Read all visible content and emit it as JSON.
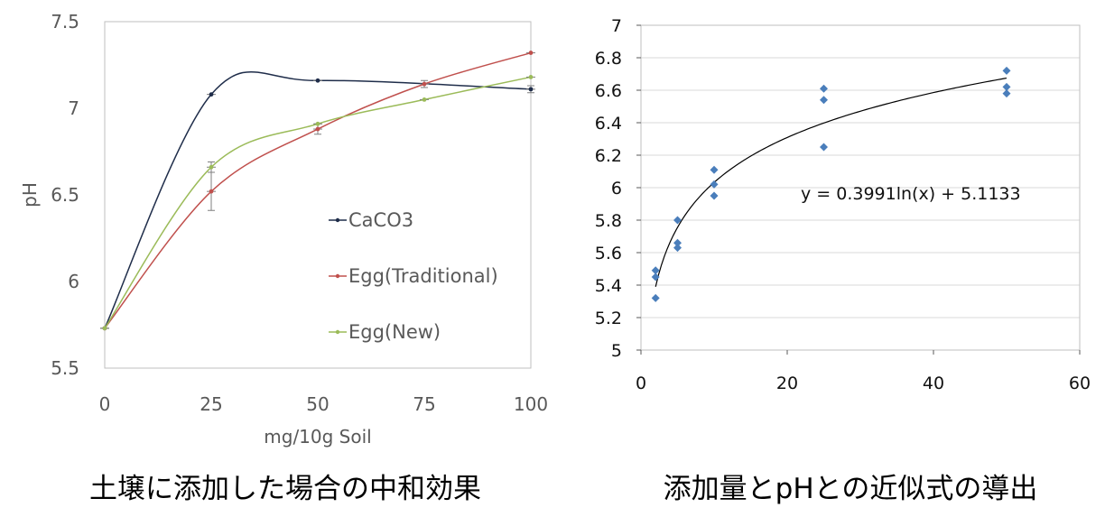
{
  "chart_data": [
    {
      "type": "line",
      "title": "",
      "xlabel": "mg/10g Soil",
      "ylabel": "pH",
      "xlim": [
        0,
        100
      ],
      "ylim": [
        5.5,
        7.5
      ],
      "x_ticks": [
        "0",
        "25",
        "50",
        "75",
        "100"
      ],
      "y_ticks": [
        "5.5",
        "6",
        "6.5",
        "7",
        "7.5"
      ],
      "legend_position": "inside-right",
      "series": [
        {
          "name": "CaCO3",
          "color": "#1f2d4a",
          "x": [
            0,
            25,
            50,
            100
          ],
          "y": [
            5.73,
            7.08,
            7.16,
            7.11
          ],
          "error": [
            0.0,
            0.0,
            0.0,
            0.02
          ]
        },
        {
          "name": "Egg(Traditional)",
          "color": "#c0504d",
          "x": [
            0,
            25,
            50,
            75,
            100
          ],
          "y": [
            5.73,
            6.52,
            6.88,
            7.14,
            7.32
          ],
          "error": [
            0.0,
            0.11,
            0.03,
            0.02,
            0.0
          ]
        },
        {
          "name": "Egg(New)",
          "color": "#9bbb59",
          "x": [
            0,
            25,
            50,
            75,
            100
          ],
          "y": [
            5.73,
            6.66,
            6.91,
            7.05,
            7.18
          ],
          "error": [
            0.0,
            0.03,
            0.0,
            0.0,
            0.0
          ]
        }
      ],
      "caption": "土壌に添加した場合の中和効果"
    },
    {
      "type": "scatter",
      "title": "",
      "xlabel": "",
      "ylabel": "",
      "xlim": [
        0,
        60
      ],
      "ylim": [
        5,
        7
      ],
      "x_ticks": [
        "0",
        "20",
        "40",
        "60"
      ],
      "y_ticks": [
        "5",
        "5.2",
        "5.4",
        "5.6",
        "5.8",
        "6",
        "6.2",
        "6.4",
        "6.6",
        "6.8",
        "7"
      ],
      "marker_color": "#4a7ebb",
      "points": [
        {
          "x": 2,
          "y": 5.32
        },
        {
          "x": 2,
          "y": 5.45
        },
        {
          "x": 2,
          "y": 5.49
        },
        {
          "x": 5,
          "y": 5.63
        },
        {
          "x": 5,
          "y": 5.66
        },
        {
          "x": 5,
          "y": 5.8
        },
        {
          "x": 10,
          "y": 5.95
        },
        {
          "x": 10,
          "y": 6.02
        },
        {
          "x": 10,
          "y": 6.11
        },
        {
          "x": 25,
          "y": 6.25
        },
        {
          "x": 25,
          "y": 6.54
        },
        {
          "x": 25,
          "y": 6.61
        },
        {
          "x": 50,
          "y": 6.58
        },
        {
          "x": 50,
          "y": 6.62
        },
        {
          "x": 50,
          "y": 6.72
        }
      ],
      "trendline": {
        "type": "log",
        "a": 0.3991,
        "b": 5.1133,
        "x_range": [
          2,
          50
        ],
        "equation": "y = 0.3991ln(x) + 5.1133"
      },
      "caption": "添加量とpHとの近似式の導出"
    }
  ]
}
